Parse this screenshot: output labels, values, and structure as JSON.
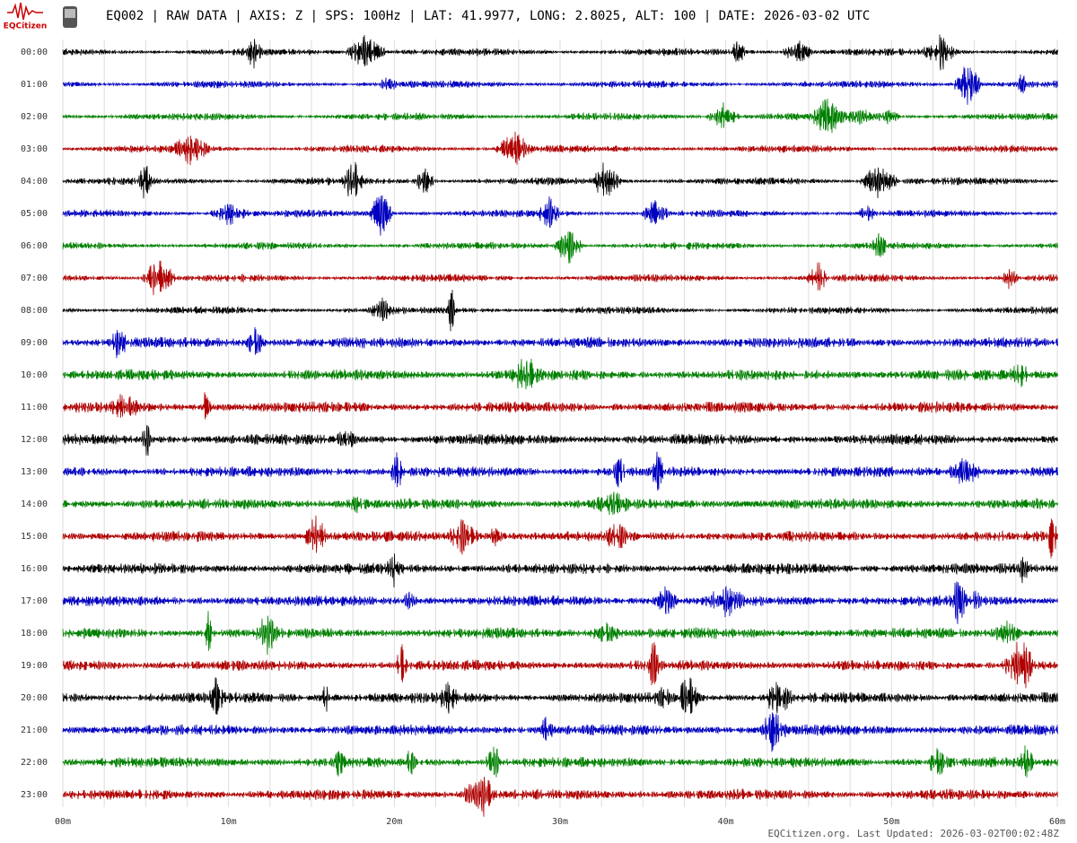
{
  "header": {
    "logo_text": "EQCitizen",
    "title": "EQ002 | RAW DATA | AXIS: Z | SPS: 100Hz | LAT: 41.9977, LONG: 2.8025, ALT: 100 | DATE: 2026-03-02 UTC"
  },
  "rows": [
    "00:00",
    "01:00",
    "02:00",
    "03:00",
    "04:00",
    "05:00",
    "06:00",
    "07:00",
    "08:00",
    "09:00",
    "10:00",
    "11:00",
    "12:00",
    "13:00",
    "14:00",
    "15:00",
    "16:00",
    "17:00",
    "18:00",
    "19:00",
    "20:00",
    "21:00",
    "22:00",
    "23:00"
  ],
  "trace_colors": [
    "#000000",
    "#0000c0",
    "#008000",
    "#b00000"
  ],
  "x_labels": [
    "00m",
    "10m",
    "20m",
    "30m",
    "40m",
    "50m",
    "60m"
  ],
  "footer": "EQCitizen.org. Last Updated: 2026-03-02T00:02:48Z"
}
